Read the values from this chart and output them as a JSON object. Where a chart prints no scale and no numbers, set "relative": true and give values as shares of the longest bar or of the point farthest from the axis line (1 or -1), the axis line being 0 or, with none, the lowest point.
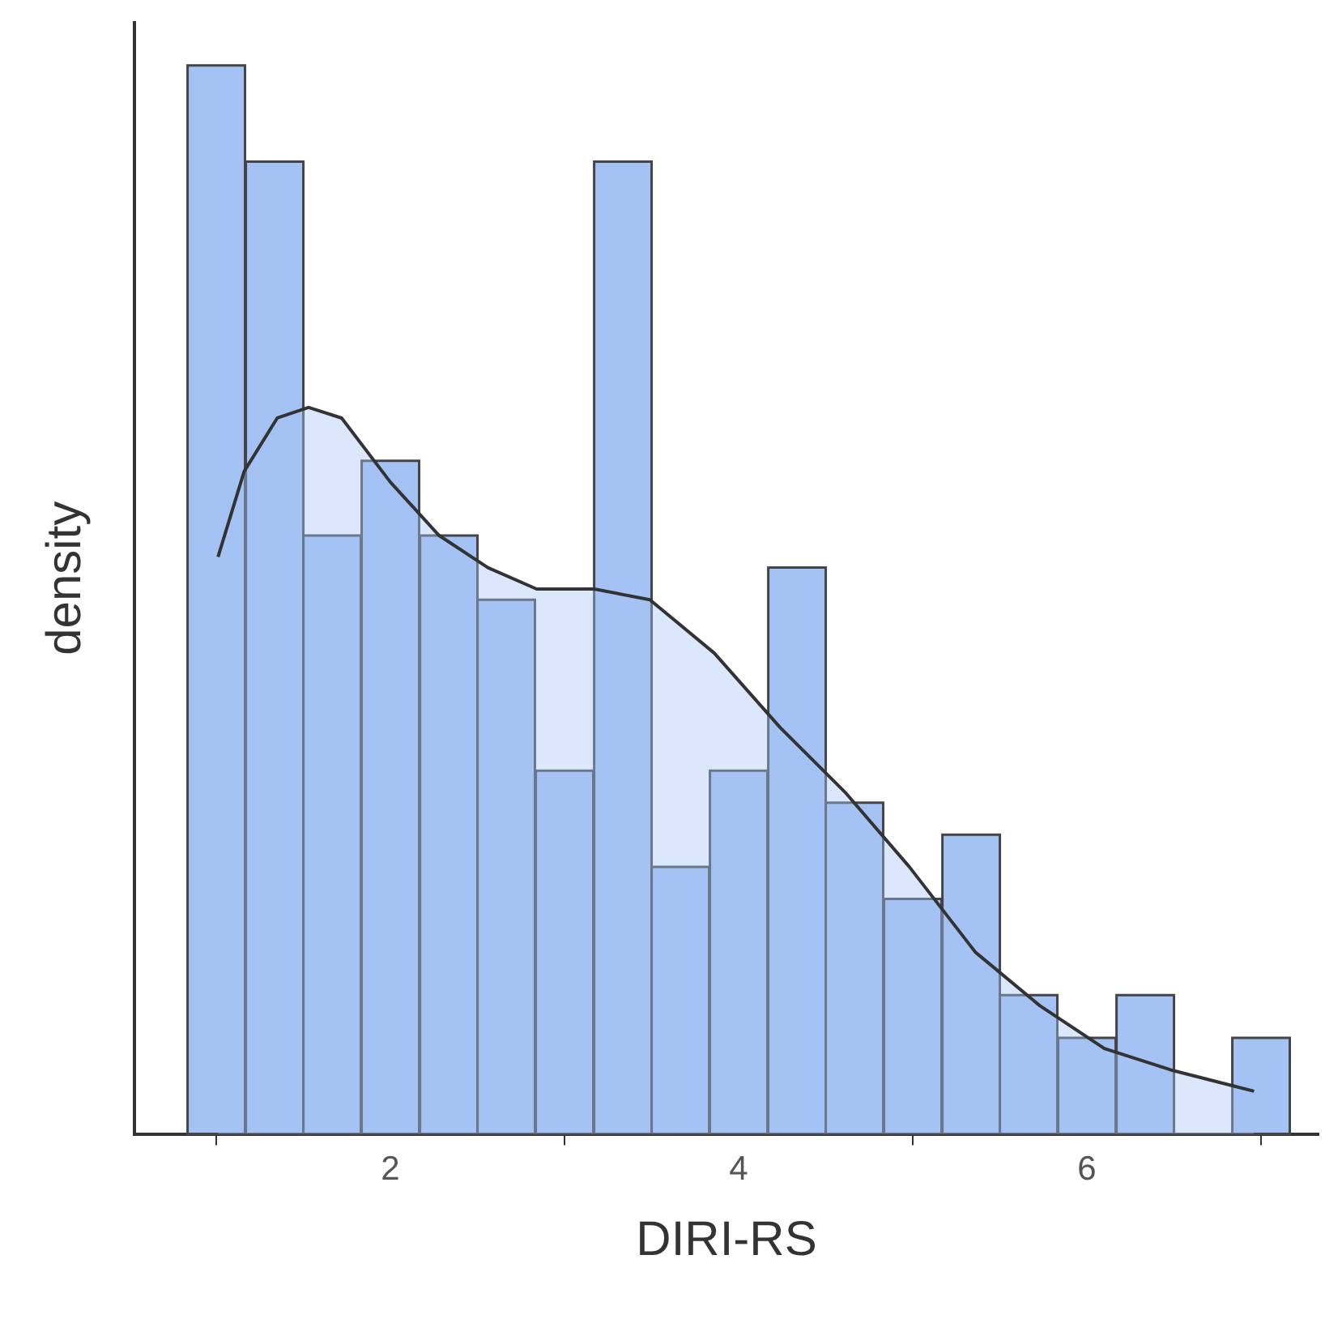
{
  "chart_data": {
    "type": "histogram",
    "xlabel": "DIRI-RS",
    "ylabel": "density",
    "relative": true,
    "color": "#a4c2f4",
    "bins": [
      0.83,
      1.17,
      1.5,
      1.83,
      2.17,
      2.5,
      2.83,
      3.17,
      3.5,
      3.83,
      4.17,
      4.5,
      4.83,
      5.17,
      5.5,
      5.83,
      6.17,
      6.5,
      6.83,
      7.17
    ],
    "values": [
      1.0,
      0.91,
      0.56,
      0.63,
      0.56,
      0.5,
      0.34,
      0.91,
      0.25,
      0.34,
      0.53,
      0.31,
      0.22,
      0.28,
      0.13,
      0.09,
      0.13,
      0,
      0.09
    ],
    "series": [
      {
        "type": "area",
        "color": "#333333",
        "x": [
          1.01,
          1.16,
          1.35,
          1.53,
          1.72,
          2.0,
          2.28,
          2.56,
          2.84,
          3.17,
          3.49,
          3.86,
          4.24,
          4.61,
          4.98,
          5.36,
          5.73,
          6.1,
          6.48,
          6.96
        ],
        "values": [
          0.54,
          0.62,
          0.67,
          0.68,
          0.67,
          0.61,
          0.56,
          0.53,
          0.51,
          0.51,
          0.5,
          0.45,
          0.38,
          0.32,
          0.25,
          0.17,
          0.12,
          0.08,
          0.06,
          0.04
        ]
      }
    ],
    "xlim": [
      0.53,
      7.33
    ],
    "xticks": [
      2,
      4,
      6
    ],
    "grid": false,
    "legend": false,
    "marker": "none"
  }
}
